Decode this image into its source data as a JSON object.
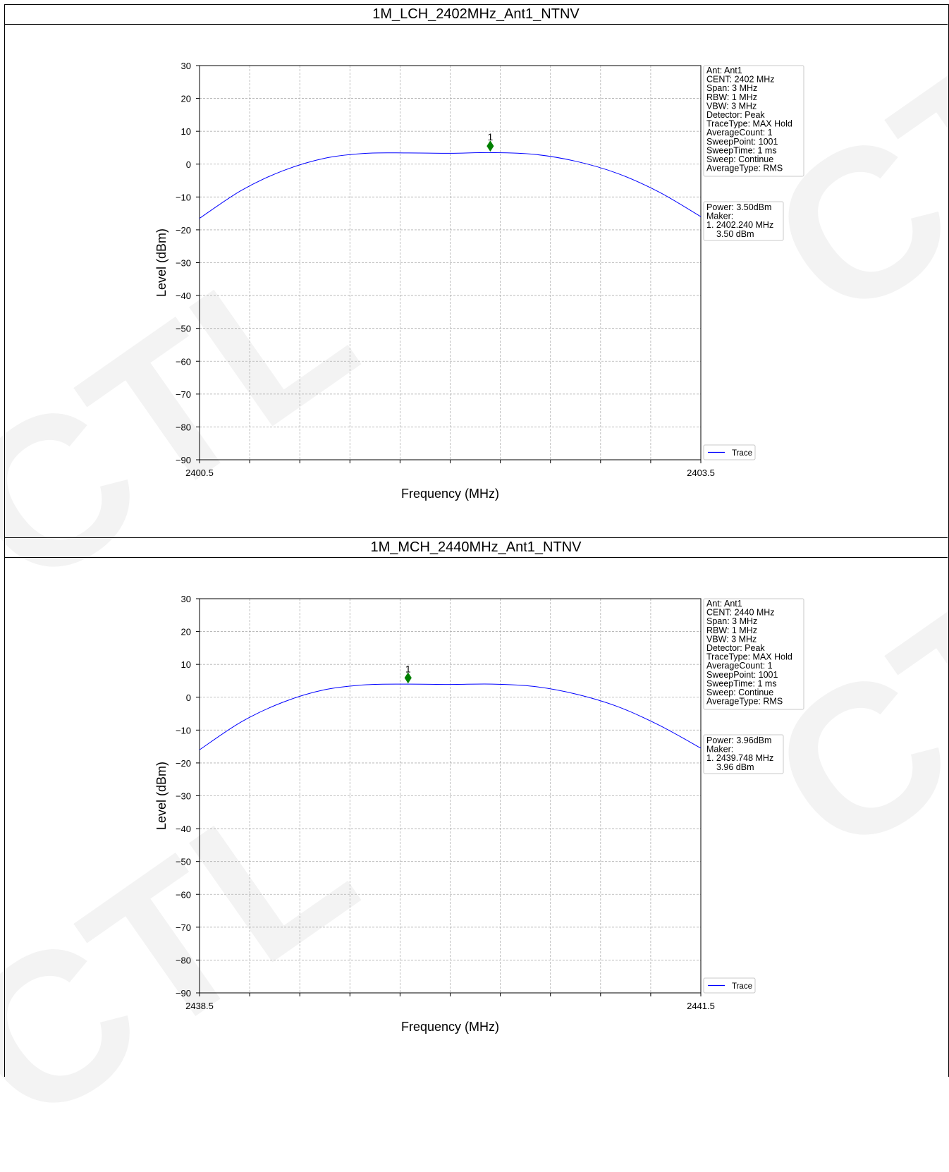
{
  "watermark_text": "CTL",
  "chart_data": [
    {
      "type": "line",
      "title": "1M_LCH_2402MHz_Ant1_NTNV",
      "xlabel": "Frequency (MHz)",
      "ylabel": "Level (dBm)",
      "xlim": [
        2400.5,
        2403.5
      ],
      "ylim": [
        -90,
        30
      ],
      "x_tick_labels": [
        "2400.5",
        "2403.5"
      ],
      "y_ticks": [
        30,
        20,
        10,
        0,
        -10,
        -20,
        -30,
        -40,
        -50,
        -60,
        -70,
        -80,
        -90
      ],
      "y_tick_labels": [
        "30",
        "20",
        "10",
        "0",
        "−10",
        "−20",
        "−30",
        "−40",
        "−50",
        "−60",
        "−70",
        "−80",
        "−90"
      ],
      "grid": true,
      "legend": "bottom-right outside",
      "series": [
        {
          "name": "Trace",
          "color": "#0000ff",
          "x": [
            2400.5,
            2400.75,
            2401.0,
            2401.25,
            2401.5,
            2401.75,
            2402.0,
            2402.25,
            2402.5,
            2402.75,
            2403.0,
            2403.25,
            2403.5
          ],
          "y": [
            -16.5,
            -8.0,
            -2.0,
            1.8,
            3.3,
            3.4,
            3.3,
            3.5,
            3.0,
            0.9,
            -2.8,
            -8.5,
            -16.0
          ]
        }
      ],
      "marker": {
        "label": "1",
        "x": 2402.24,
        "y": 5.5,
        "color": "#008000"
      },
      "info_box": [
        "Ant: Ant1",
        "CENT: 2402 MHz",
        "Span: 3 MHz",
        "RBW: 1 MHz",
        "VBW: 3 MHz",
        "Detector: Peak",
        "TraceType: MAX Hold",
        "AverageCount: 1",
        "SweepPoint: 1001",
        "SweepTime: 1 ms",
        "Sweep: Continue",
        "AverageType: RMS"
      ],
      "power_box": [
        "Power: 3.50dBm",
        "Maker:",
        "1. 2402.240 MHz",
        "3.50 dBm"
      ]
    },
    {
      "type": "line",
      "title": "1M_MCH_2440MHz_Ant1_NTNV",
      "xlabel": "Frequency (MHz)",
      "ylabel": "Level (dBm)",
      "xlim": [
        2438.5,
        2441.5
      ],
      "ylim": [
        -90,
        30
      ],
      "x_tick_labels": [
        "2438.5",
        "2441.5"
      ],
      "y_ticks": [
        30,
        20,
        10,
        0,
        -10,
        -20,
        -30,
        -40,
        -50,
        -60,
        -70,
        -80,
        -90
      ],
      "y_tick_labels": [
        "30",
        "20",
        "10",
        "0",
        "−10",
        "−20",
        "−30",
        "−40",
        "−50",
        "−60",
        "−70",
        "−80",
        "−90"
      ],
      "grid": true,
      "legend": "bottom-right outside",
      "series": [
        {
          "name": "Trace",
          "color": "#0000ff",
          "x": [
            2438.5,
            2438.75,
            2439.0,
            2439.25,
            2439.5,
            2439.75,
            2440.0,
            2440.25,
            2440.5,
            2440.75,
            2441.0,
            2441.25,
            2441.5
          ],
          "y": [
            -16.0,
            -7.5,
            -1.5,
            2.3,
            3.8,
            4.0,
            3.9,
            4.0,
            3.3,
            1.0,
            -2.8,
            -8.5,
            -15.5
          ]
        }
      ],
      "marker": {
        "label": "1",
        "x": 2439.748,
        "y": 5.9,
        "color": "#008000"
      },
      "info_box": [
        "Ant: Ant1",
        "CENT: 2440 MHz",
        "Span: 3 MHz",
        "RBW: 1 MHz",
        "VBW: 3 MHz",
        "Detector: Peak",
        "TraceType: MAX Hold",
        "AverageCount: 1",
        "SweepPoint: 1001",
        "SweepTime: 1 ms",
        "Sweep: Continue",
        "AverageType: RMS"
      ],
      "power_box": [
        "Power: 3.96dBm",
        "Maker:",
        "1. 2439.748 MHz",
        "3.96 dBm"
      ]
    }
  ]
}
